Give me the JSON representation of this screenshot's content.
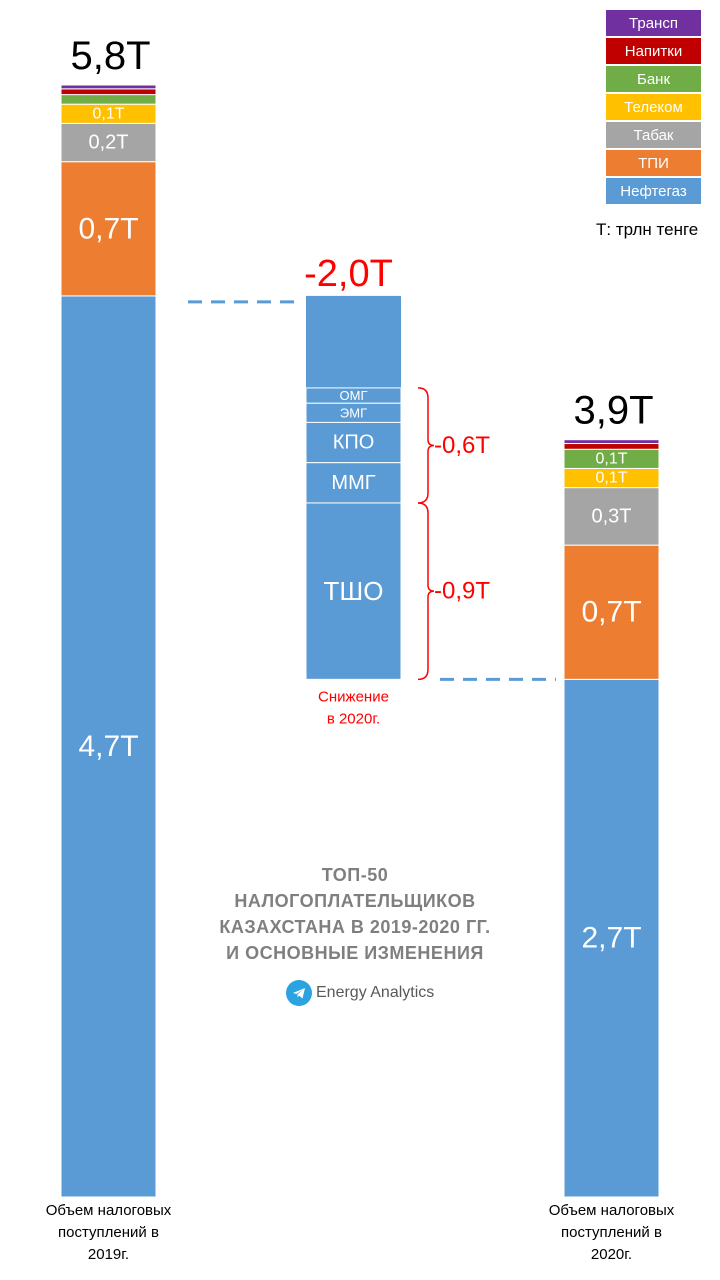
{
  "chart_data": {
    "type": "waterfall-stacked-bar",
    "unit_note": "Т: трлн тенге",
    "title_lines": [
      "ТОП-50",
      "НАЛОГОПЛАТЕЛЬЩИКОВ",
      "КАЗАХСТАНА  В 2019-2020 ГГ.",
      "И ОСНОВНЫЕ  ИЗМЕНЕНИЯ"
    ],
    "brand": "Energy Analytics",
    "colors": {
      "Нефтегаз": "#5b9bd5",
      "ТПИ": "#ed7d31",
      "Табак": "#a5a5a5",
      "Телеком": "#ffc000",
      "Банк": "#70ad47",
      "Напитки": "#c00000",
      "Трансп": "#7030a0",
      "decline_text": "#ff0000",
      "bracket": "#ff0000",
      "connector": "#5b9bd5"
    },
    "legend": [
      "Трансп",
      "Напитки",
      "Банк",
      "Телеком",
      "Табак",
      "ТПИ",
      "Нефтегаз"
    ],
    "series_order": [
      "Нефтегаз",
      "ТПИ",
      "Табак",
      "Телеком",
      "Банк",
      "Напитки",
      "Трансп"
    ],
    "y_max": 5.8,
    "bars": [
      {
        "id": "2019",
        "total_label": "5,8Т",
        "category_lines": [
          "Объем налоговых",
          "поступлений в",
          "2019г."
        ],
        "segments": [
          {
            "series": "Нефтегаз",
            "value": 4.7,
            "label": "4,7Т"
          },
          {
            "series": "ТПИ",
            "value": 0.7,
            "label": "0,7Т"
          },
          {
            "series": "Табак",
            "value": 0.2,
            "label": "0,2Т"
          },
          {
            "series": "Телеком",
            "value": 0.1,
            "label": "0,1Т"
          },
          {
            "series": "Банк",
            "value": 0.05,
            "label": ""
          },
          {
            "series": "Напитки",
            "value": 0.03,
            "label": ""
          },
          {
            "series": "Трансп",
            "value": 0.02,
            "label": ""
          }
        ]
      },
      {
        "id": "2020",
        "total_label": "3,9Т",
        "category_lines": [
          "Объем налоговых",
          "поступлений в",
          "2020г."
        ],
        "segments": [
          {
            "series": "Нефтегаз",
            "value": 2.7,
            "label": "2,7Т"
          },
          {
            "series": "ТПИ",
            "value": 0.7,
            "label": "0,7Т"
          },
          {
            "series": "Табак",
            "value": 0.3,
            "label": "0,3Т"
          },
          {
            "series": "Телеком",
            "value": 0.1,
            "label": "0,1Т"
          },
          {
            "series": "Банк",
            "value": 0.1,
            "label": "0,1Т"
          },
          {
            "series": "Напитки",
            "value": 0.03,
            "label": ""
          },
          {
            "series": "Трансп",
            "value": 0.02,
            "label": ""
          }
        ]
      }
    ],
    "decline": {
      "total_label": "-2,0Т",
      "value": 2.0,
      "caption_lines": [
        "Снижение",
        "в 2020г."
      ],
      "segments": [
        {
          "name": "ОМГ",
          "value": 0.08
        },
        {
          "name": "ЭМГ",
          "value": 0.1
        },
        {
          "name": "КПО",
          "value": 0.21
        },
        {
          "name": "ММГ",
          "value": 0.21
        },
        {
          "name": "ТШО",
          "value": 0.92
        }
      ],
      "groups": [
        {
          "label": "-0,6Т",
          "from": "ОМГ",
          "to": "ММГ"
        },
        {
          "label": "-0,9Т",
          "from": "ТШО",
          "to": "ТШО"
        }
      ]
    }
  }
}
